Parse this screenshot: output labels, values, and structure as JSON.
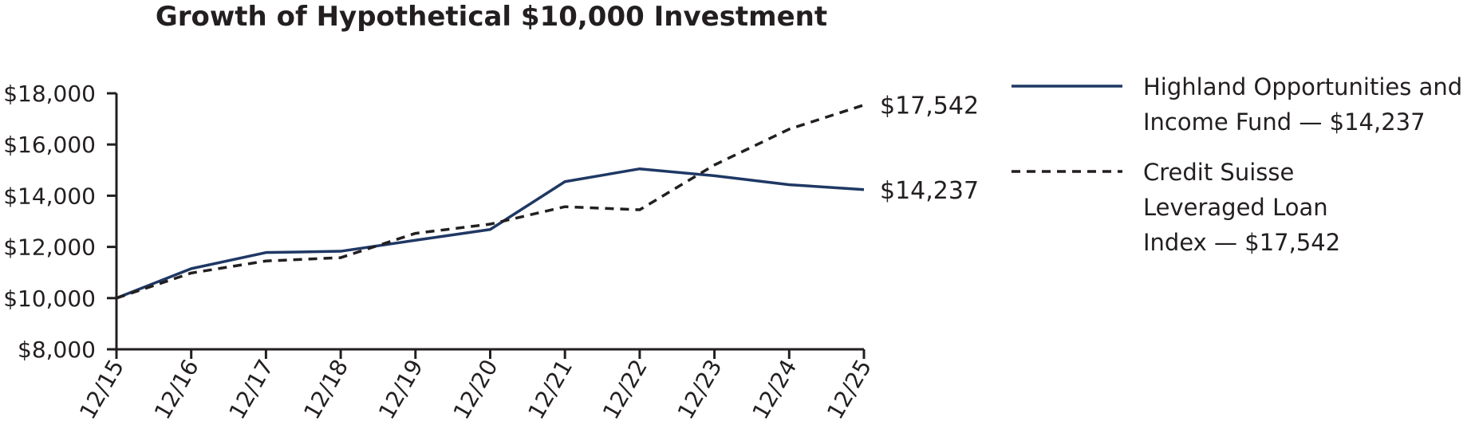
{
  "chart_data": {
    "type": "line",
    "title": "Growth of Hypothetical $10,000 Investment",
    "categories": [
      "12/15",
      "12/16",
      "12/17",
      "12/18",
      "12/19",
      "12/20",
      "12/21",
      "12/22",
      "12/23",
      "12/24",
      "12/25"
    ],
    "ylim": [
      8000,
      18000
    ],
    "y_ticks": [
      8000,
      10000,
      12000,
      14000,
      16000,
      18000
    ],
    "y_tick_labels": [
      "$8,000",
      "$10,000",
      "$12,000",
      "$14,000",
      "$16,000",
      "$18,000"
    ],
    "grid": false,
    "legend_position": "right",
    "series": [
      {
        "name": "Highland Opportunities and Income Fund",
        "legend_lines": [
          "Highland Opportunities and",
          "Income Fund  —  $14,237"
        ],
        "style": "solid",
        "color": "#1f3864",
        "values": [
          10000,
          11150,
          11780,
          11830,
          12260,
          12680,
          14550,
          15050,
          14780,
          14430,
          14237
        ],
        "end_label": "$14,237"
      },
      {
        "name": "Credit Suisse Leveraged Loan Index",
        "legend_lines": [
          "Credit Suisse",
          "Leveraged Loan",
          "Index  —  $17,542"
        ],
        "style": "dashed",
        "color": "#231f20",
        "values": [
          10000,
          10980,
          11450,
          11580,
          12530,
          12890,
          13570,
          13450,
          15200,
          16600,
          17542
        ],
        "end_label": "$17,542"
      }
    ]
  }
}
